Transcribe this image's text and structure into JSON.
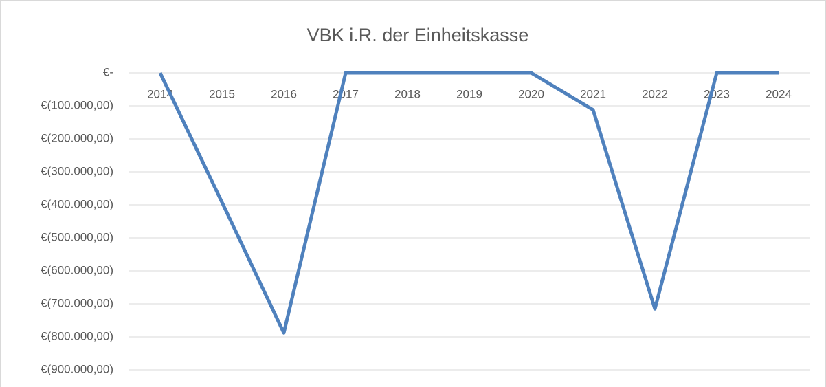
{
  "chart_data": {
    "type": "line",
    "title": "VBK i.R. der Einheitskasse",
    "categories": [
      "2014",
      "2015",
      "2016",
      "2017",
      "2018",
      "2019",
      "2020",
      "2021",
      "2022",
      "2023",
      "2024"
    ],
    "series": [
      {
        "name": "VBK",
        "color": "#4f81bd",
        "values": [
          0,
          -392000,
          -788000,
          0,
          0,
          0,
          0,
          -112000,
          -715000,
          0,
          0
        ]
      }
    ],
    "ylim": [
      -900000,
      0
    ],
    "yticks": [
      {
        "value": 0,
        "label": "€-"
      },
      {
        "value": -100000,
        "label": "€(100.000,00)"
      },
      {
        "value": -200000,
        "label": "€(200.000,00)"
      },
      {
        "value": -300000,
        "label": "€(300.000,00)"
      },
      {
        "value": -400000,
        "label": "€(400.000,00)"
      },
      {
        "value": -500000,
        "label": "€(500.000,00)"
      },
      {
        "value": -600000,
        "label": "€(600.000,00)"
      },
      {
        "value": -700000,
        "label": "€(700.000,00)"
      },
      {
        "value": -800000,
        "label": "€(800.000,00)"
      },
      {
        "value": -900000,
        "label": "€(900.000,00)"
      }
    ],
    "grid": true
  }
}
